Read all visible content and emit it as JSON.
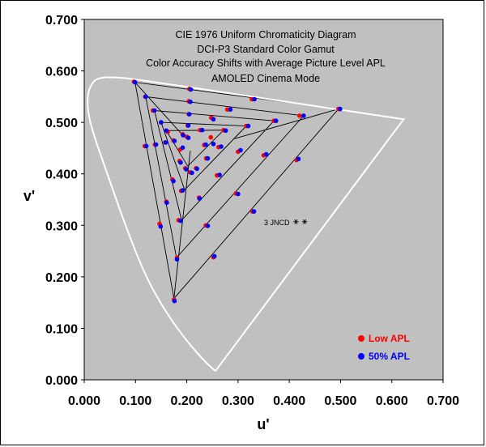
{
  "chart_data": {
    "type": "scatter",
    "title_lines": [
      "CIE 1976 Uniform Chromaticity Diagram",
      "DCI-P3 Standard Color Gamut",
      "Color Accuracy Shifts with Average Picture Level APL",
      "AMOLED Cinema Mode"
    ],
    "xlabel": "u'",
    "ylabel": "v'",
    "xlim": [
      0,
      0.7
    ],
    "ylim": [
      0,
      0.7
    ],
    "x_ticks": [
      "0.000",
      "0.100",
      "0.200",
      "0.300",
      "0.400",
      "0.500",
      "0.600",
      "0.700"
    ],
    "y_ticks": [
      "0.000",
      "0.100",
      "0.200",
      "0.300",
      "0.400",
      "0.500",
      "0.600",
      "0.700"
    ],
    "plot_background": "#c0c0c0",
    "grid": false,
    "legend_position": "bottom-right",
    "annotation": "3 JNCD",
    "jncd_markers": [
      [
        0.413,
        0.307
      ],
      [
        0.43,
        0.307
      ]
    ],
    "spectral_locus": [
      [
        0.256,
        0.017
      ],
      [
        0.24,
        0.03
      ],
      [
        0.2,
        0.075
      ],
      [
        0.16,
        0.13
      ],
      [
        0.12,
        0.2
      ],
      [
        0.08,
        0.3
      ],
      [
        0.045,
        0.4
      ],
      [
        0.01,
        0.5
      ],
      [
        0.005,
        0.55
      ],
      [
        0.015,
        0.578
      ],
      [
        0.03,
        0.587
      ],
      [
        0.06,
        0.588
      ],
      [
        0.1,
        0.584
      ],
      [
        0.623,
        0.506
      ],
      [
        0.256,
        0.017
      ]
    ],
    "gamut_triangles": [
      [
        [
          0.496,
          0.526
        ],
        [
          0.099,
          0.578
        ],
        [
          0.175,
          0.158
        ]
      ],
      [
        [
          0.428,
          0.513
        ],
        [
          0.12,
          0.55
        ],
        [
          0.18,
          0.237
        ]
      ],
      [
        [
          0.37,
          0.503
        ],
        [
          0.137,
          0.523
        ],
        [
          0.19,
          0.31
        ]
      ],
      [
        [
          0.316,
          0.493
        ],
        [
          0.15,
          0.5
        ],
        [
          0.196,
          0.369
        ]
      ],
      [
        [
          0.272,
          0.485
        ],
        [
          0.16,
          0.484
        ],
        [
          0.202,
          0.415
        ]
      ]
    ],
    "spokes": [
      [
        [
          0.292,
          0.468
        ],
        [
          0.496,
          0.526
        ]
      ],
      [
        [
          0.195,
          0.472
        ],
        [
          0.099,
          0.578
        ]
      ],
      [
        [
          0.207,
          0.445
        ],
        [
          0.175,
          0.158
        ]
      ]
    ],
    "series": [
      {
        "name": "Low APL",
        "color": "#ff0000",
        "points": [
          [
            0.097,
            0.579
          ],
          [
            0.119,
            0.55
          ],
          [
            0.134,
            0.523
          ],
          [
            0.15,
            0.5
          ],
          [
            0.163,
            0.482
          ],
          [
            0.205,
            0.565
          ],
          [
            0.204,
            0.541
          ],
          [
            0.204,
            0.516
          ],
          [
            0.202,
            0.494
          ],
          [
            0.2,
            0.472
          ],
          [
            0.327,
            0.545
          ],
          [
            0.279,
            0.525
          ],
          [
            0.248,
            0.509
          ],
          [
            0.226,
            0.485
          ],
          [
            0.42,
            0.513
          ],
          [
            0.37,
            0.503
          ],
          [
            0.316,
            0.493
          ],
          [
            0.272,
            0.485
          ],
          [
            0.247,
            0.471
          ],
          [
            0.496,
            0.526
          ],
          [
            0.414,
            0.427
          ],
          [
            0.35,
            0.436
          ],
          [
            0.3,
            0.443
          ],
          [
            0.262,
            0.452
          ],
          [
            0.234,
            0.456
          ],
          [
            0.328,
            0.327
          ],
          [
            0.296,
            0.362
          ],
          [
            0.259,
            0.397
          ],
          [
            0.238,
            0.43
          ],
          [
            0.218,
            0.411
          ],
          [
            0.175,
            0.156
          ],
          [
            0.181,
            0.237
          ],
          [
            0.184,
            0.31
          ],
          [
            0.189,
            0.367
          ],
          [
            0.197,
            0.411
          ],
          [
            0.252,
            0.238
          ],
          [
            0.237,
            0.3
          ],
          [
            0.224,
            0.354
          ],
          [
            0.207,
            0.403
          ],
          [
            0.147,
            0.303
          ],
          [
            0.16,
            0.346
          ],
          [
            0.172,
            0.389
          ],
          [
            0.186,
            0.425
          ],
          [
            0.187,
            0.447
          ],
          [
            0.118,
            0.454
          ],
          [
            0.138,
            0.457
          ],
          [
            0.158,
            0.461
          ],
          [
            0.174,
            0.465
          ],
          [
            0.192,
            0.477
          ]
        ]
      },
      {
        "name": "50% APL",
        "color": "#0000ff",
        "points": [
          [
            0.099,
            0.578
          ],
          [
            0.12,
            0.55
          ],
          [
            0.137,
            0.523
          ],
          [
            0.15,
            0.5
          ],
          [
            0.16,
            0.484
          ],
          [
            0.208,
            0.564
          ],
          [
            0.207,
            0.54
          ],
          [
            0.205,
            0.516
          ],
          [
            0.203,
            0.494
          ],
          [
            0.203,
            0.47
          ],
          [
            0.332,
            0.545
          ],
          [
            0.285,
            0.525
          ],
          [
            0.252,
            0.506
          ],
          [
            0.23,
            0.485
          ],
          [
            0.428,
            0.513
          ],
          [
            0.374,
            0.503
          ],
          [
            0.32,
            0.493
          ],
          [
            0.276,
            0.484
          ],
          [
            0.252,
            0.458
          ],
          [
            0.499,
            0.526
          ],
          [
            0.418,
            0.429
          ],
          [
            0.355,
            0.438
          ],
          [
            0.305,
            0.446
          ],
          [
            0.267,
            0.453
          ],
          [
            0.237,
            0.457
          ],
          [
            0.331,
            0.327
          ],
          [
            0.3,
            0.361
          ],
          [
            0.264,
            0.398
          ],
          [
            0.241,
            0.43
          ],
          [
            0.22,
            0.41
          ],
          [
            0.176,
            0.153
          ],
          [
            0.181,
            0.234
          ],
          [
            0.188,
            0.309
          ],
          [
            0.192,
            0.368
          ],
          [
            0.199,
            0.409
          ],
          [
            0.254,
            0.24
          ],
          [
            0.241,
            0.299
          ],
          [
            0.225,
            0.352
          ],
          [
            0.21,
            0.402
          ],
          [
            0.149,
            0.298
          ],
          [
            0.161,
            0.344
          ],
          [
            0.174,
            0.386
          ],
          [
            0.188,
            0.422
          ],
          [
            0.192,
            0.451
          ],
          [
            0.121,
            0.454
          ],
          [
            0.14,
            0.457
          ],
          [
            0.159,
            0.461
          ],
          [
            0.176,
            0.464
          ],
          [
            0.193,
            0.475
          ]
        ]
      }
    ]
  }
}
